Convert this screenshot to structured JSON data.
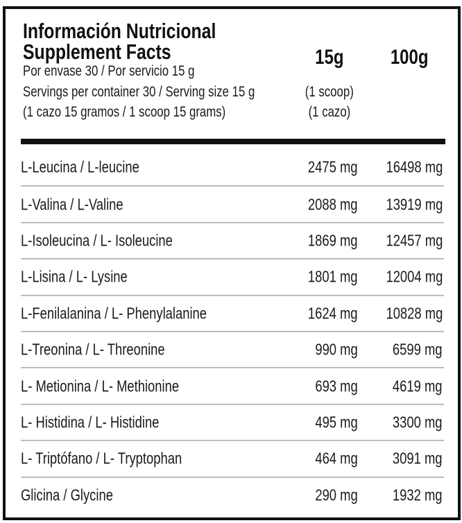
{
  "header": {
    "title_es": "Información Nutricional",
    "title_en": "Supplement Facts",
    "line1": "Por envase 30 / Por servicio 15 g",
    "line2": "Servings per container 30 / Serving size 15 g",
    "line3": "(1 cazo 15 gramos / 1 scoop 15 grams)",
    "col1_label": "15g",
    "col1_note1": "(1 scoop)",
    "col1_note2": "(1 cazo)",
    "col2_label": "100g"
  },
  "rows": [
    {
      "name": "L-Leucina / L-leucine",
      "per_serving": "2475 mg",
      "per_100g": "16498 mg"
    },
    {
      "name": "L-Valina / L-Valine",
      "per_serving": "2088 mg",
      "per_100g": "13919 mg"
    },
    {
      "name": "L-Isoleucina / L- Isoleucine",
      "per_serving": "1869 mg",
      "per_100g": "12457 mg"
    },
    {
      "name": "L-Lisina / L- Lysine",
      "per_serving": "1801 mg",
      "per_100g": "12004 mg"
    },
    {
      "name": "L-Fenilalanina / L- Phenylalanine",
      "per_serving": "1624 mg",
      "per_100g": "10828 mg"
    },
    {
      "name": "L-Treonina / L- Threonine",
      "per_serving": "990 mg",
      "per_100g": "6599 mg"
    },
    {
      "name": "L- Metionina / L- Methionine",
      "per_serving": "693 mg",
      "per_100g": "4619 mg"
    },
    {
      "name": "L- Histidina / L- Histidine",
      "per_serving": "495 mg",
      "per_100g": "3300 mg"
    },
    {
      "name": "L- Triptófano / L- Tryptophan",
      "per_serving": "464 mg",
      "per_100g": "3091 mg"
    },
    {
      "name": "Glicina / Glycine",
      "per_serving": "290 mg",
      "per_100g": "1932 mg"
    }
  ]
}
